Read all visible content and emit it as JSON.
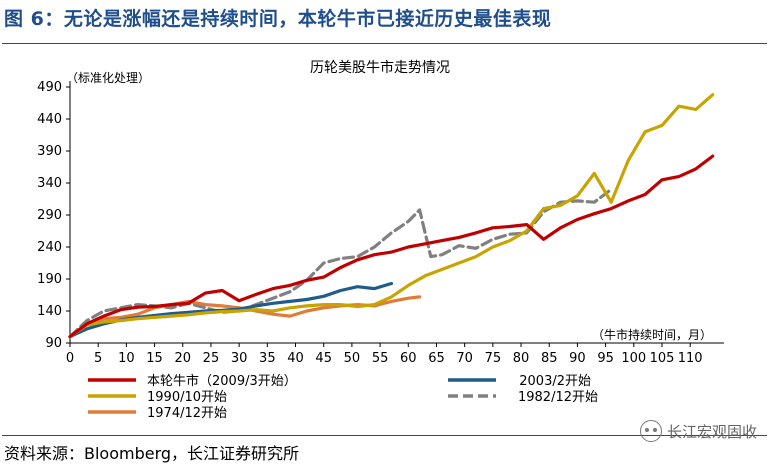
{
  "figure": {
    "title": "图 6：无论是涨幅还是持续时间，本轮牛市已接近历史最佳表现",
    "source": "资料来源：Bloomberg，长江证券研究所",
    "watermark": "长江宏观固收",
    "title_color": "#1f4e8c"
  },
  "chart_data": {
    "type": "line",
    "title": "历轮美股牛市走势情况",
    "ylabel": "（标准化处理）",
    "xlabel": "（牛市持续时间，月）",
    "xlim": [
      0,
      116
    ],
    "ylim": [
      90,
      490
    ],
    "yticks": [
      90,
      140,
      190,
      240,
      290,
      340,
      390,
      440,
      490
    ],
    "xticks": [
      0,
      5,
      10,
      15,
      20,
      25,
      30,
      35,
      40,
      45,
      50,
      55,
      60,
      65,
      70,
      75,
      80,
      85,
      90,
      95,
      100,
      105,
      110
    ],
    "series": [
      {
        "name": "本轮牛市（2009/3开始）",
        "color": "#c00000",
        "dash": false,
        "x": [
          0,
          3,
          6,
          9,
          12,
          15,
          18,
          21,
          24,
          27,
          30,
          33,
          36,
          39,
          42,
          45,
          48,
          51,
          54,
          57,
          60,
          63,
          66,
          69,
          72,
          75,
          78,
          81,
          84,
          87,
          90,
          93,
          96,
          99,
          102,
          105,
          108,
          111,
          114
        ],
        "values": [
          100,
          120,
          132,
          142,
          146,
          147,
          150,
          152,
          168,
          172,
          156,
          166,
          175,
          180,
          188,
          193,
          208,
          220,
          228,
          232,
          240,
          245,
          250,
          255,
          262,
          270,
          272,
          275,
          252,
          270,
          283,
          292,
          300,
          312,
          322,
          345,
          350,
          362,
          382
        ]
      },
      {
        "name": "2003/2开始",
        "color": "#1f5c8b",
        "dash": false,
        "x": [
          0,
          3,
          6,
          9,
          12,
          15,
          18,
          21,
          24,
          27,
          30,
          33,
          36,
          39,
          42,
          45,
          48,
          51,
          54,
          57
        ],
        "values": [
          100,
          112,
          120,
          126,
          130,
          133,
          136,
          138,
          140,
          141,
          143,
          148,
          152,
          155,
          158,
          163,
          172,
          178,
          175,
          183
        ]
      },
      {
        "name": "1990/10开始",
        "color": "#c9a300",
        "dash": false,
        "x": [
          0,
          3,
          6,
          9,
          12,
          15,
          18,
          21,
          24,
          27,
          30,
          33,
          36,
          39,
          42,
          45,
          48,
          51,
          54,
          57,
          60,
          63,
          66,
          69,
          72,
          75,
          78,
          81,
          84,
          87,
          90,
          93,
          96,
          99,
          102,
          105,
          108,
          111,
          114
        ],
        "values": [
          100,
          118,
          123,
          125,
          128,
          130,
          132,
          134,
          137,
          139,
          140,
          142,
          140,
          145,
          148,
          150,
          150,
          147,
          150,
          162,
          180,
          195,
          205,
          215,
          225,
          240,
          250,
          265,
          300,
          305,
          320,
          355,
          310,
          375,
          420,
          430,
          460,
          455,
          478
        ]
      },
      {
        "name": "1982/12开始",
        "color": "#808080",
        "dash": true,
        "x": [
          0,
          3,
          6,
          9,
          12,
          15,
          18,
          21,
          24,
          27,
          30,
          33,
          36,
          39,
          42,
          45,
          48,
          51,
          54,
          57,
          60,
          62,
          64,
          66,
          69,
          72,
          75,
          78,
          81,
          84,
          87,
          90,
          93,
          96
        ],
        "values": [
          100,
          125,
          140,
          145,
          150,
          148,
          145,
          152,
          145,
          138,
          140,
          150,
          160,
          170,
          188,
          215,
          222,
          225,
          240,
          262,
          280,
          298,
          225,
          228,
          242,
          238,
          252,
          260,
          262,
          295,
          310,
          312,
          310,
          330
        ]
      },
      {
        "name": "1974/12开始",
        "color": "#e07b39",
        "dash": false,
        "x": [
          0,
          3,
          6,
          9,
          12,
          15,
          18,
          21,
          24,
          27,
          30,
          33,
          36,
          39,
          42,
          45,
          48,
          51,
          54,
          57,
          60,
          62
        ],
        "values": [
          100,
          120,
          128,
          130,
          135,
          145,
          150,
          155,
          150,
          148,
          145,
          140,
          135,
          132,
          140,
          145,
          148,
          150,
          148,
          155,
          160,
          162
        ]
      }
    ],
    "legend": "bottom"
  }
}
